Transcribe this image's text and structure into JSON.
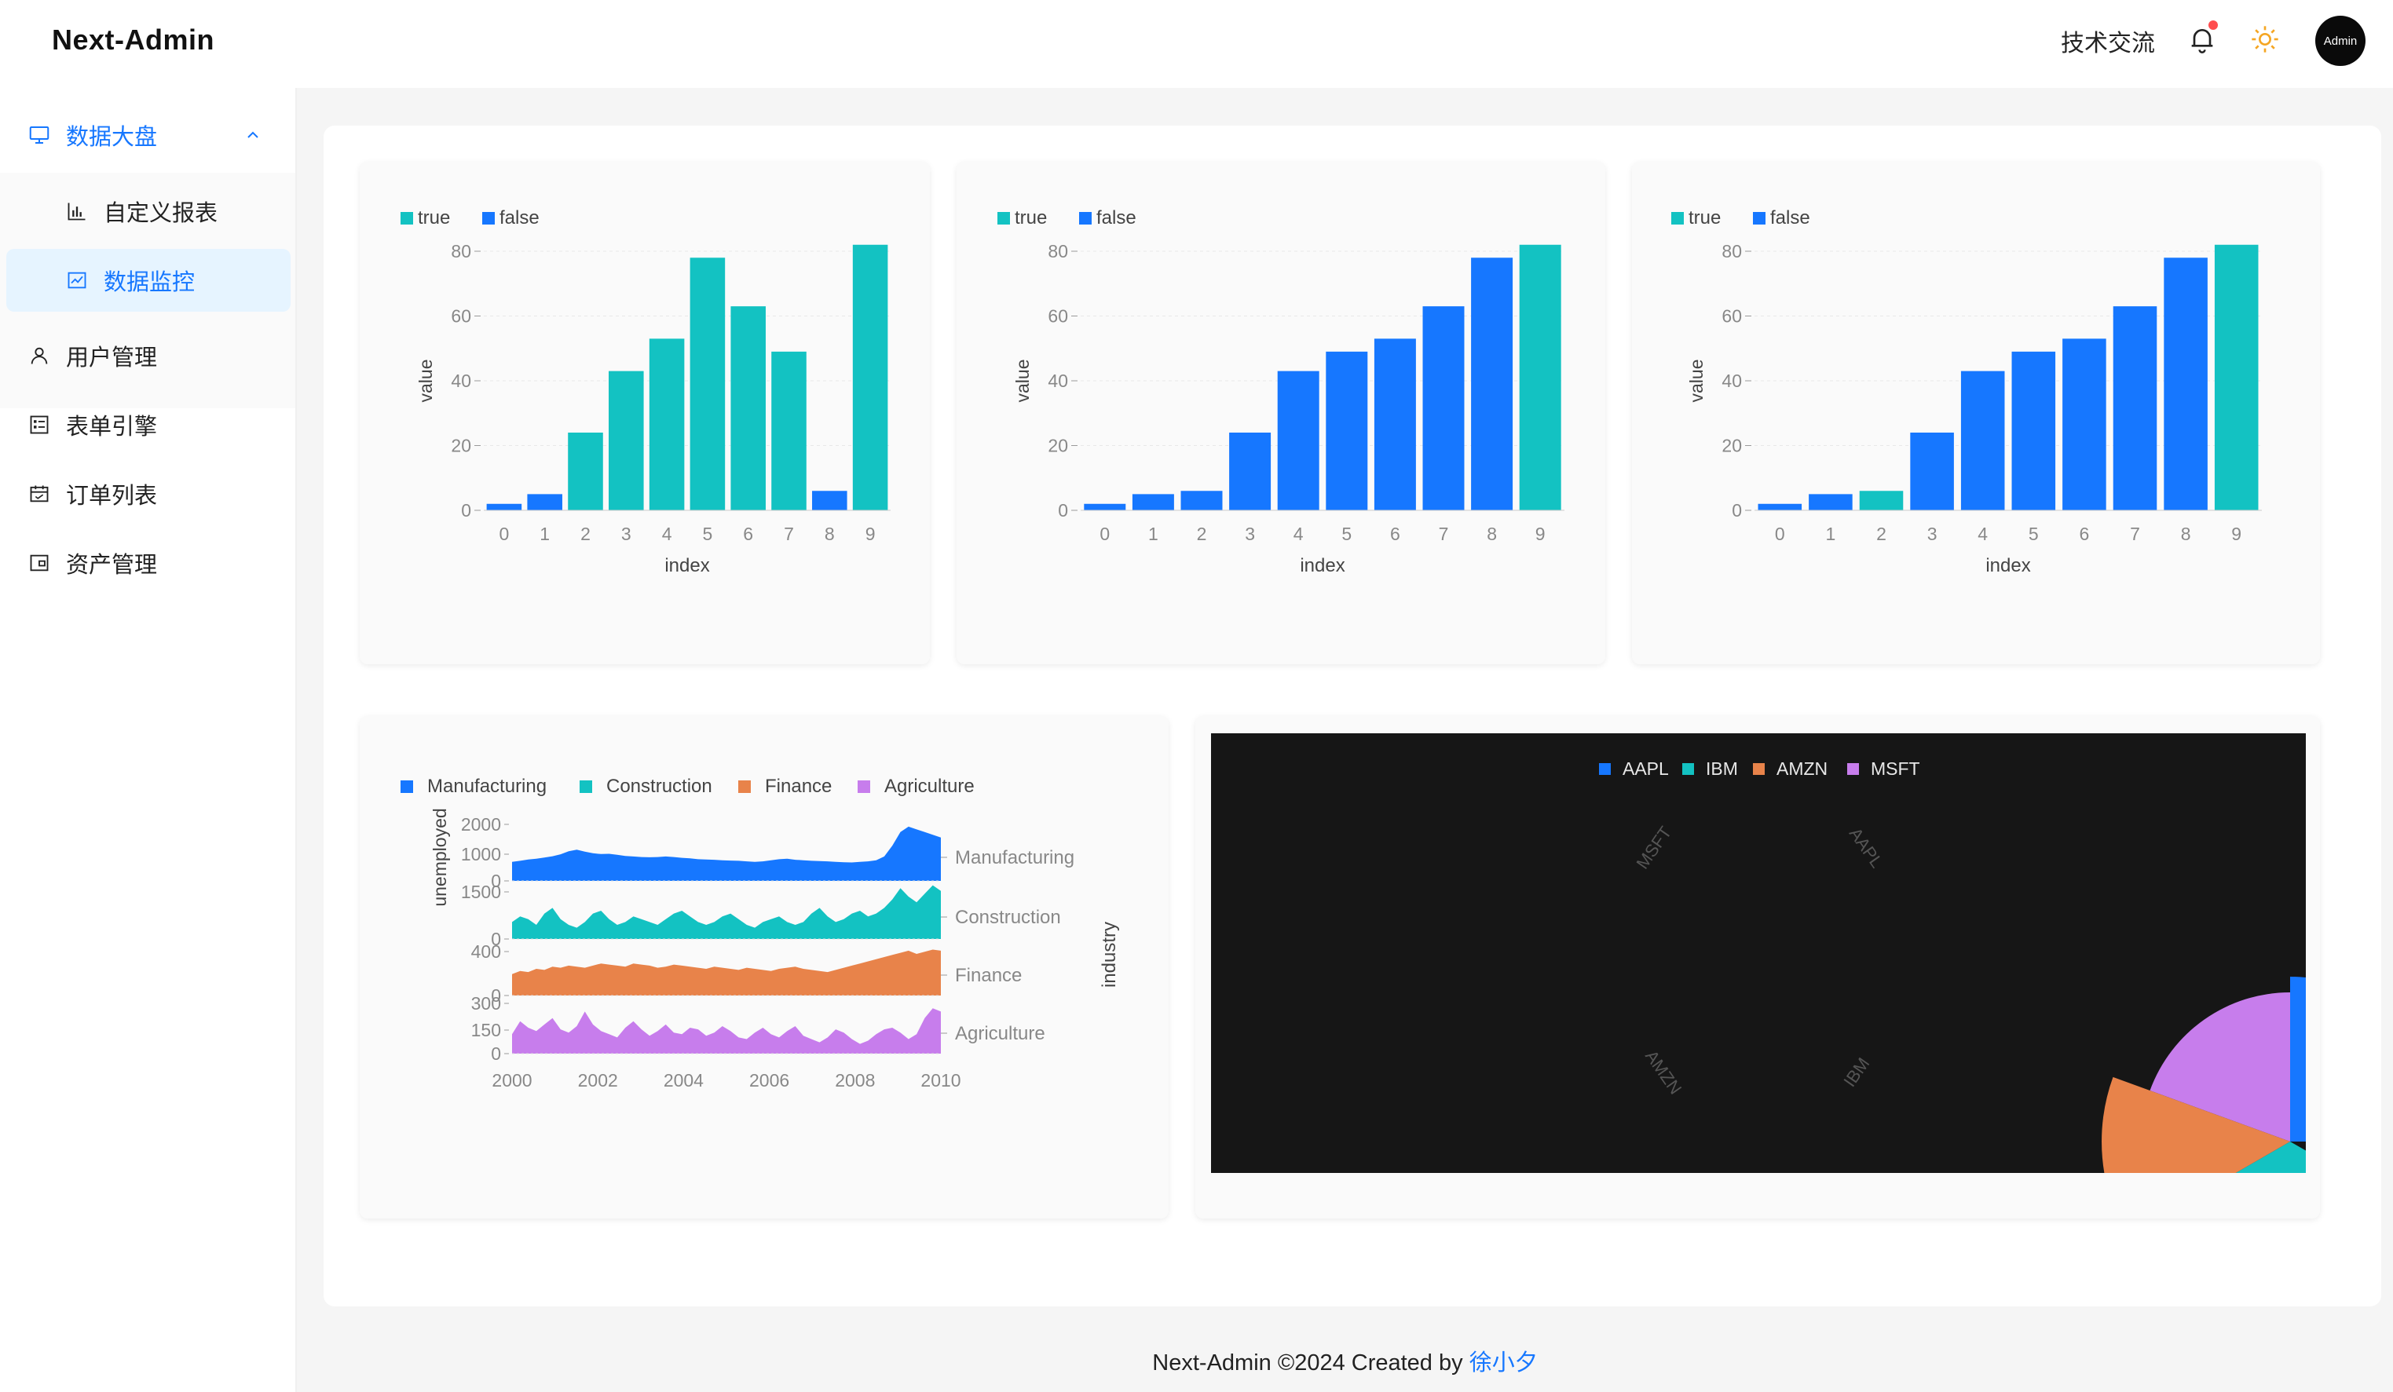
{
  "app": {
    "title": "Next-Admin",
    "header_link": "技术交流",
    "avatar_label": "Admin"
  },
  "sidebar": {
    "items": [
      {
        "label": "数据大盘",
        "icon": "monitor-icon",
        "state": "open"
      },
      {
        "label": "自定义报表",
        "icon": "bar-chart-icon",
        "sub": true
      },
      {
        "label": "数据监控",
        "icon": "line-chart-icon",
        "sub": true,
        "state": "active"
      },
      {
        "label": "用户管理",
        "icon": "user-icon"
      },
      {
        "label": "表单引擎",
        "icon": "form-icon"
      },
      {
        "label": "订单列表",
        "icon": "calendar-icon"
      },
      {
        "label": "资产管理",
        "icon": "wallet-icon"
      }
    ]
  },
  "colors": {
    "accent": "#1677ff",
    "teal": "#13c2c2",
    "orange": "#e8834a",
    "purple": "#c77dec",
    "dark_bg": "#161616"
  },
  "chart_data": [
    {
      "type": "bar",
      "legend": [
        "true",
        "false"
      ],
      "categories": [
        "0",
        "1",
        "2",
        "3",
        "4",
        "5",
        "6",
        "7",
        "8",
        "9"
      ],
      "values": [
        2,
        5,
        24,
        43,
        53,
        78,
        63,
        49,
        6,
        82
      ],
      "series_flag": [
        "false",
        "false",
        "true",
        "true",
        "true",
        "true",
        "true",
        "true",
        "false",
        "true"
      ],
      "xlabel": "index",
      "ylabel": "value",
      "ylim": [
        0,
        80
      ],
      "yticks": [
        0,
        20,
        40,
        60,
        80
      ]
    },
    {
      "type": "bar",
      "legend": [
        "true",
        "false"
      ],
      "categories": [
        "0",
        "1",
        "2",
        "3",
        "4",
        "5",
        "6",
        "7",
        "8",
        "9"
      ],
      "values": [
        2,
        5,
        6,
        24,
        43,
        49,
        53,
        63,
        78,
        82
      ],
      "series_flag": [
        "false",
        "false",
        "false",
        "false",
        "false",
        "false",
        "false",
        "false",
        "false",
        "true"
      ],
      "xlabel": "index",
      "ylabel": "value",
      "ylim": [
        0,
        80
      ],
      "yticks": [
        0,
        20,
        40,
        60,
        80
      ]
    },
    {
      "type": "bar",
      "legend": [
        "true",
        "false"
      ],
      "categories": [
        "0",
        "1",
        "2",
        "3",
        "4",
        "5",
        "6",
        "7",
        "8",
        "9"
      ],
      "values": [
        2,
        5,
        6,
        24,
        43,
        49,
        53,
        63,
        78,
        82
      ],
      "series_flag": [
        "false",
        "false",
        "true",
        "false",
        "false",
        "false",
        "false",
        "false",
        "false",
        "true"
      ],
      "xlabel": "index",
      "ylabel": "value",
      "ylim": [
        0,
        80
      ],
      "yticks": [
        0,
        20,
        40,
        60,
        80
      ]
    },
    {
      "type": "area",
      "legend": [
        "Manufacturing",
        "Construction",
        "Finance",
        "Agriculture"
      ],
      "x_ticks": [
        "2000",
        "2002",
        "2004",
        "2006",
        "2008",
        "2010"
      ],
      "xlabel": "",
      "ylabel": "unemployed",
      "facet_label": "industry",
      "series": [
        {
          "name": "Manufacturing",
          "yticks": [
            "2000",
            "1000",
            "0"
          ],
          "ymax": 2200,
          "values": [
            700,
            740,
            790,
            820,
            860,
            910,
            980,
            1090,
            1150,
            1080,
            1020,
            990,
            1000,
            960,
            920,
            900,
            880,
            870,
            880,
            900,
            880,
            850,
            830,
            800,
            790,
            780,
            760,
            750,
            740,
            720,
            700,
            720,
            760,
            800,
            820,
            780,
            760,
            740,
            730,
            720,
            700,
            690,
            680,
            700,
            720,
            760,
            900,
            1300,
            1800,
            2000,
            1900,
            1800,
            1700,
            1600
          ]
        },
        {
          "name": "Construction",
          "yticks": [
            "1500",
            "0"
          ],
          "ymax": 2000,
          "values": [
            600,
            800,
            700,
            500,
            900,
            1100,
            700,
            500,
            400,
            600,
            900,
            1000,
            700,
            500,
            600,
            800,
            700,
            600,
            500,
            700,
            900,
            1000,
            800,
            600,
            500,
            600,
            800,
            900,
            700,
            500,
            400,
            600,
            700,
            800,
            600,
            500,
            600,
            900,
            1100,
            800,
            600,
            700,
            900,
            1000,
            800,
            900,
            1100,
            1400,
            1800,
            1500,
            1300,
            1600,
            1900,
            1700
          ]
        },
        {
          "name": "Finance",
          "yticks": [
            "400",
            "0"
          ],
          "ymax": 500,
          "values": [
            200,
            230,
            220,
            250,
            240,
            270,
            260,
            280,
            270,
            260,
            280,
            300,
            290,
            280,
            270,
            300,
            290,
            280,
            260,
            270,
            290,
            280,
            270,
            260,
            250,
            270,
            260,
            250,
            240,
            260,
            250,
            240,
            230,
            250,
            260,
            270,
            250,
            240,
            230,
            220,
            240,
            260,
            280,
            300,
            320,
            340,
            360,
            380,
            400,
            420,
            390,
            410,
            430,
            420
          ]
        },
        {
          "name": "Agriculture",
          "yticks": [
            "300",
            "150",
            "0"
          ],
          "ymax": 330,
          "values": [
            120,
            200,
            160,
            140,
            180,
            220,
            150,
            130,
            170,
            260,
            180,
            140,
            120,
            100,
            160,
            200,
            150,
            110,
            140,
            180,
            130,
            120,
            160,
            150,
            110,
            130,
            170,
            140,
            100,
            90,
            130,
            160,
            120,
            100,
            140,
            170,
            110,
            90,
            70,
            100,
            150,
            130,
            90,
            60,
            80,
            120,
            150,
            160,
            130,
            90,
            120,
            220,
            280,
            260
          ]
        }
      ]
    },
    {
      "type": "pie",
      "legend": [
        "AAPL",
        "IBM",
        "AMZN",
        "MSFT"
      ],
      "slice_labels": [
        "MSFT",
        "AAPL",
        "AMZN",
        "IBM"
      ],
      "background": "dark"
    }
  ],
  "footer": {
    "text": "Next-Admin ©2024 Created by",
    "author": "徐小夕"
  }
}
